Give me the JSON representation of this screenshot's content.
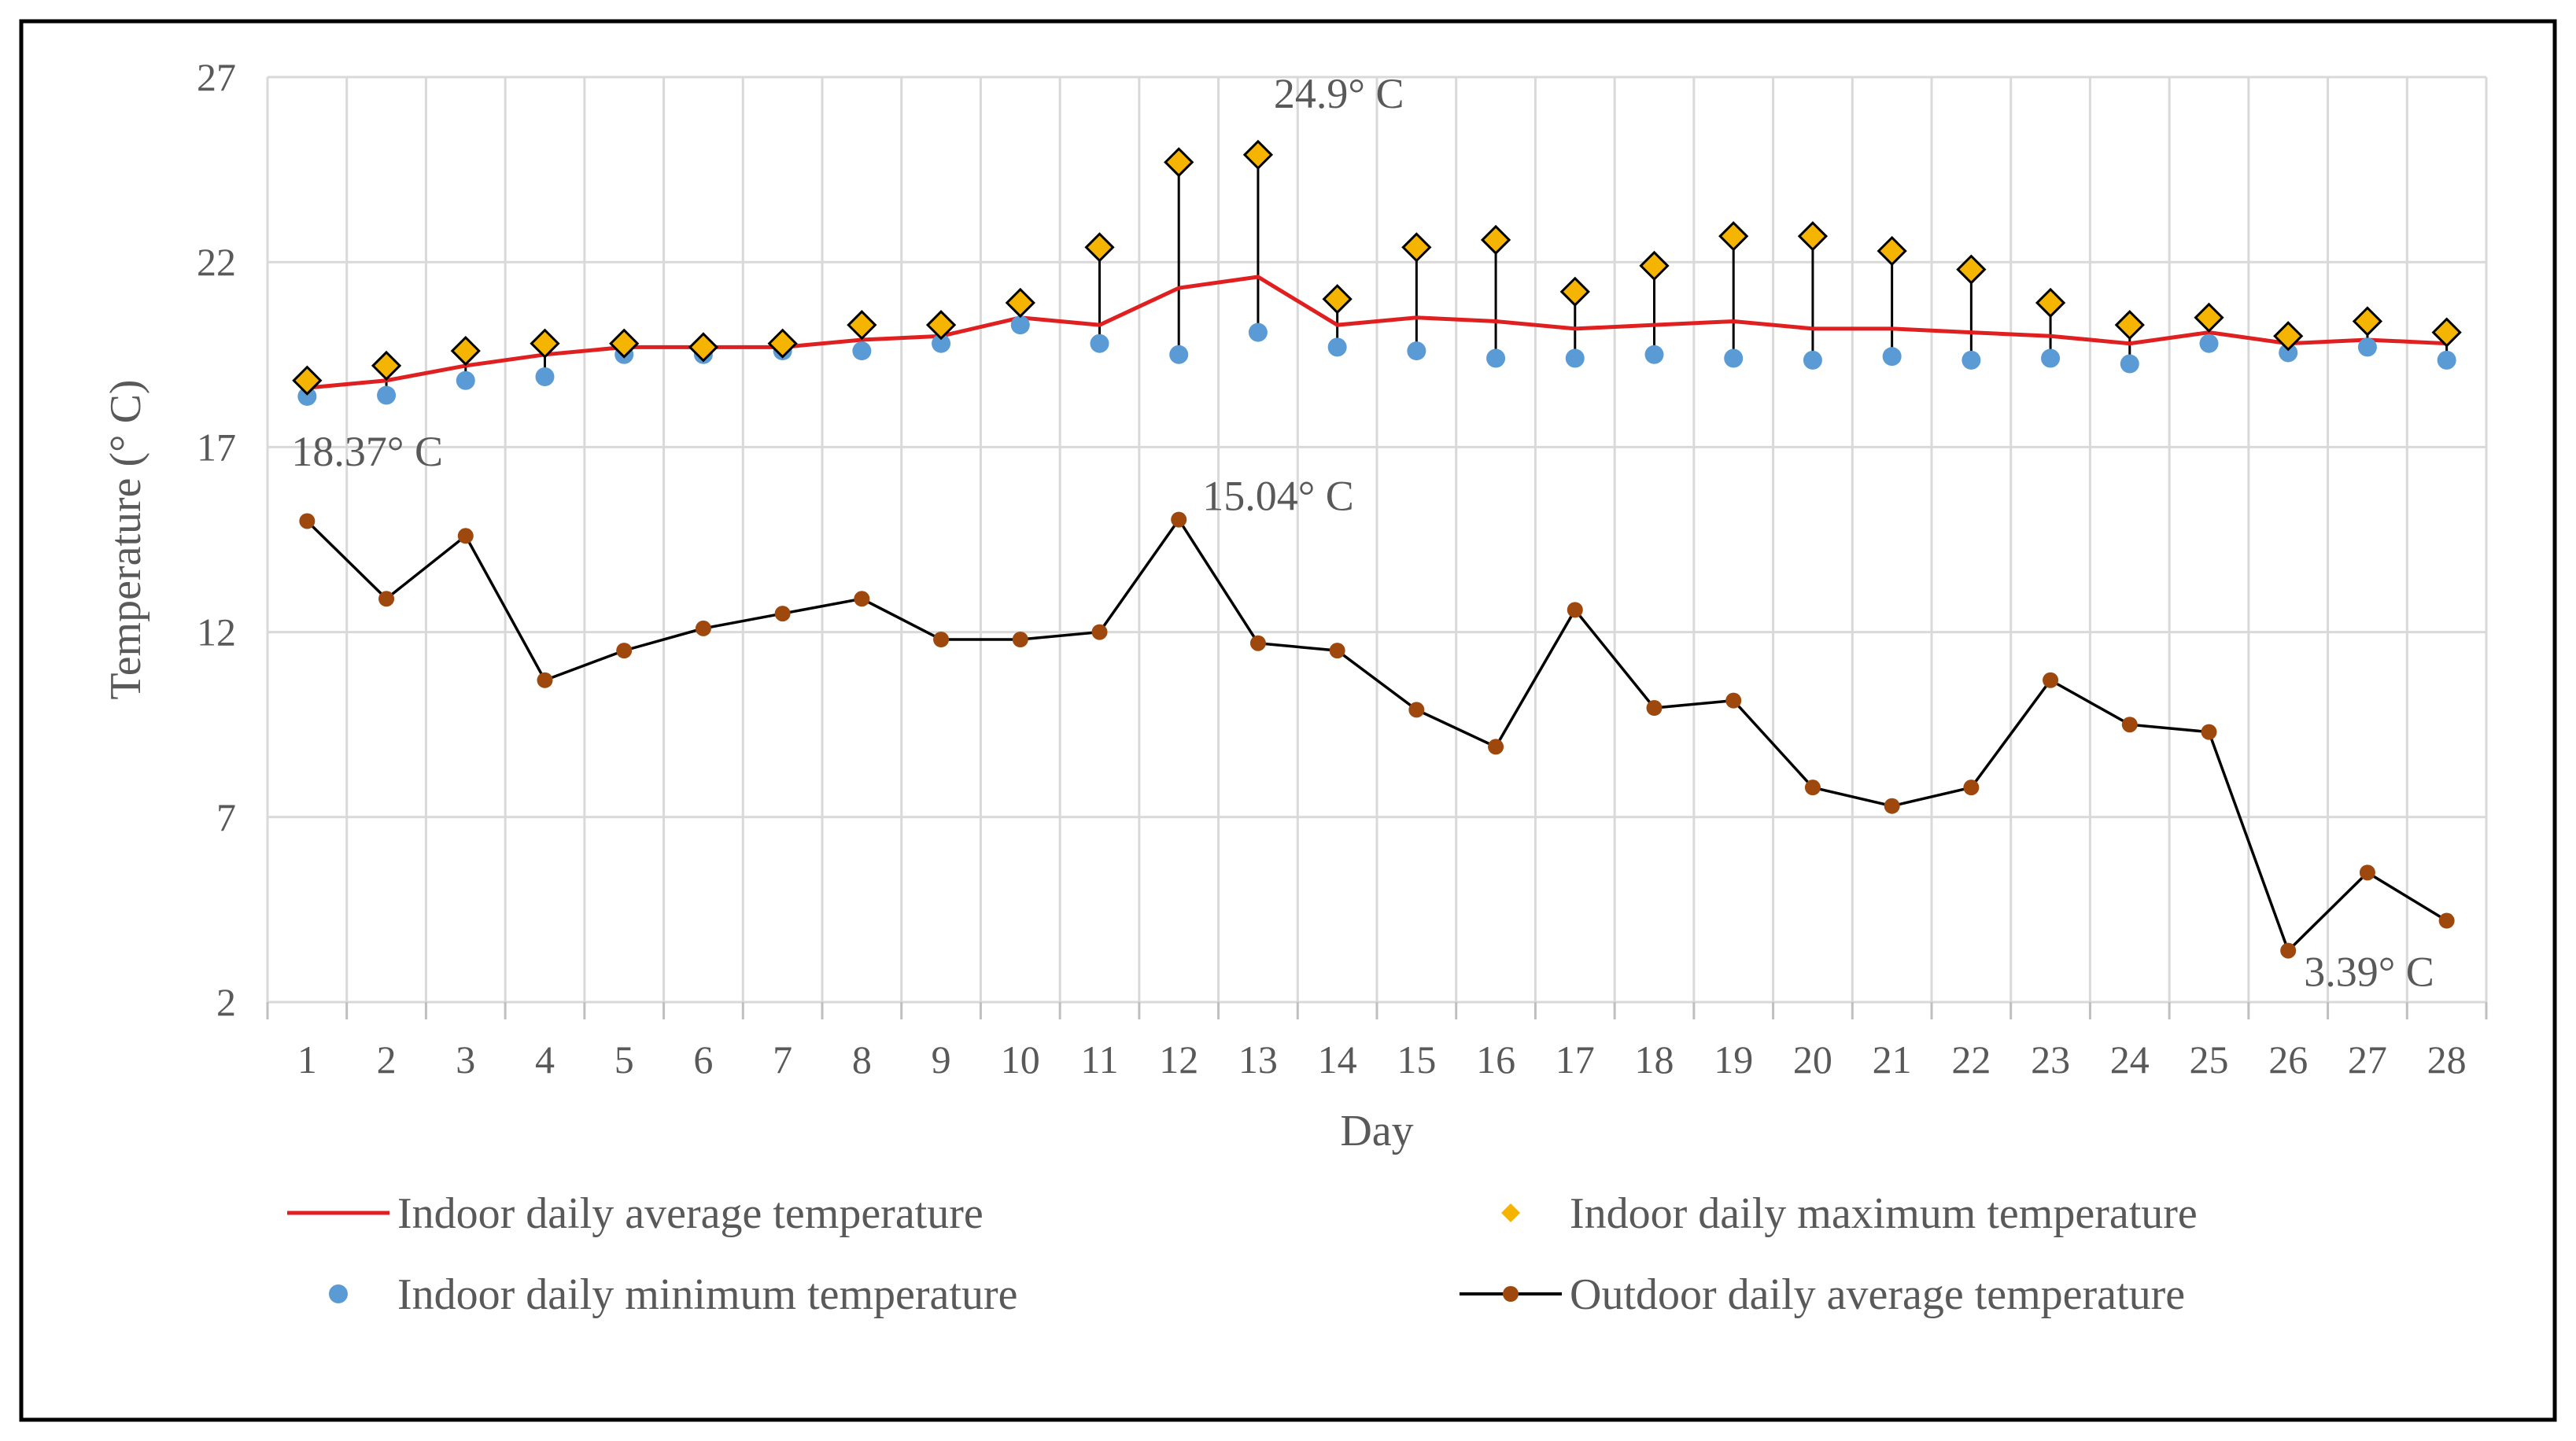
{
  "chart_data": {
    "type": "line",
    "title": "",
    "xlabel": "Day",
    "ylabel": "Temperature (° C)",
    "ylim": [
      2,
      27
    ],
    "yticks": [
      2,
      7,
      12,
      17,
      22,
      27
    ],
    "grid": true,
    "legend_position": "bottom",
    "x": [
      1,
      2,
      3,
      4,
      5,
      6,
      7,
      8,
      9,
      10,
      11,
      12,
      13,
      14,
      15,
      16,
      17,
      18,
      19,
      20,
      21,
      22,
      23,
      24,
      25,
      26,
      27,
      28
    ],
    "series": [
      {
        "name": "Indoor daily average temperature",
        "style": "line",
        "color": "#e02020",
        "values": [
          18.6,
          18.8,
          19.2,
          19.5,
          19.7,
          19.7,
          19.7,
          19.9,
          20.0,
          20.5,
          20.3,
          21.3,
          21.6,
          20.3,
          20.5,
          20.4,
          20.2,
          20.3,
          20.4,
          20.2,
          20.2,
          20.1,
          20.0,
          19.8,
          20.1,
          19.8,
          19.9,
          19.8
        ]
      },
      {
        "name": "Indoor daily maximum temperature",
        "style": "diamond",
        "color": "#f5b400",
        "values": [
          18.8,
          19.2,
          19.6,
          19.8,
          19.8,
          19.7,
          19.8,
          20.3,
          20.3,
          20.9,
          22.4,
          24.7,
          24.9,
          21.0,
          22.4,
          22.6,
          21.2,
          21.9,
          22.7,
          22.7,
          22.3,
          21.8,
          20.9,
          20.3,
          20.5,
          20.0,
          20.4,
          20.1
        ]
      },
      {
        "name": "Indoor daily minimum temperature",
        "style": "dot",
        "color": "#5b9bd5",
        "values": [
          18.37,
          18.4,
          18.8,
          18.9,
          19.5,
          19.5,
          19.6,
          19.6,
          19.8,
          20.3,
          19.8,
          19.5,
          20.1,
          19.7,
          19.6,
          19.4,
          19.4,
          19.5,
          19.4,
          19.35,
          19.45,
          19.35,
          19.4,
          19.25,
          19.8,
          19.55,
          19.7,
          19.35
        ]
      },
      {
        "name": "Outdoor daily average temperature",
        "style": "line-marker",
        "color": "#000000",
        "marker_color": "#9e480e",
        "values": [
          15.0,
          12.9,
          14.6,
          10.7,
          11.5,
          12.1,
          12.5,
          12.9,
          11.8,
          11.8,
          12.0,
          15.04,
          11.7,
          11.5,
          9.9,
          8.9,
          12.6,
          9.95,
          10.15,
          7.8,
          7.3,
          7.8,
          10.7,
          9.5,
          9.3,
          3.39,
          5.5,
          4.2
        ]
      }
    ],
    "annotations": [
      {
        "text": "24.9° C",
        "x": 13,
        "y": 24.9
      },
      {
        "text": "18.37° C",
        "x": 1,
        "y": 18.37
      },
      {
        "text": "15.04° C",
        "x": 12,
        "y": 15.04
      },
      {
        "text": "3.39° C",
        "x": 26,
        "y": 3.39
      }
    ]
  }
}
